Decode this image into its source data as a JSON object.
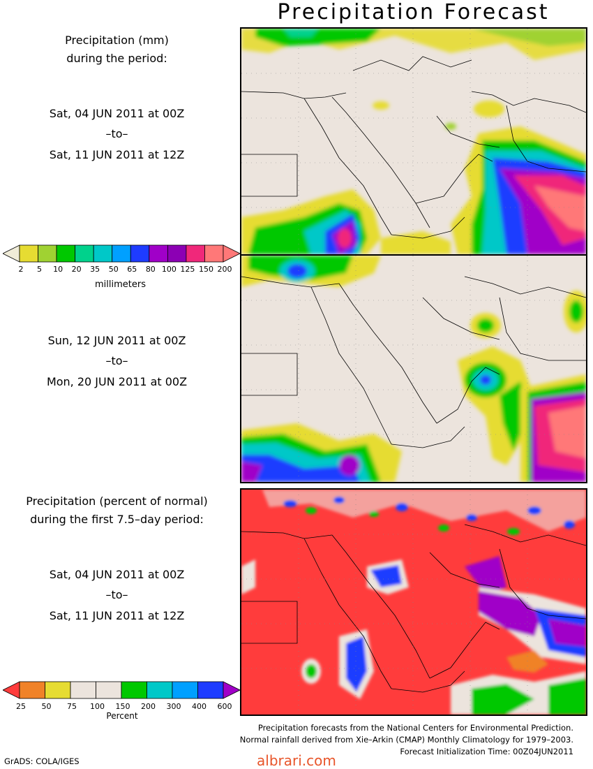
{
  "title": "Precipitation Forecast",
  "panel1": {
    "header_line1": "Precipitation (mm)",
    "header_line2": "during the period:",
    "start": "Sat, 04 JUN 2011 at 00Z",
    "to": "–to–",
    "end": "Sat, 11 JUN 2011 at 12Z"
  },
  "panel2": {
    "start": "Sun, 12 JUN 2011 at 00Z",
    "to": "–to–",
    "end": "Mon, 20 JUN 2011 at 00Z"
  },
  "panel3": {
    "header_line1": "Precipitation (percent of normal)",
    "header_line2": "during the first 7.5–day period:",
    "start": "Sat, 04 JUN 2011 at 00Z",
    "to": "–to–",
    "end": "Sat, 11 JUN 2011 at 12Z"
  },
  "mm_colorbar": {
    "unit": "millimeters",
    "ticks": [
      "2",
      "5",
      "10",
      "20",
      "35",
      "50",
      "65",
      "80",
      "100",
      "125",
      "150",
      "200"
    ],
    "colors": [
      "#f0ecd8",
      "#e6dc32",
      "#a0d232",
      "#00c800",
      "#00d28c",
      "#00c8c8",
      "#00a0ff",
      "#1e3cff",
      "#a000c8",
      "#8c00b4",
      "#f0287a",
      "#ff7878",
      "#ff7878"
    ]
  },
  "pct_colorbar": {
    "unit": "Percent",
    "ticks": [
      "25",
      "50",
      "75",
      "100",
      "150",
      "200",
      "300",
      "400",
      "600"
    ],
    "colors": [
      "#ff3c3c",
      "#f08228",
      "#e6dc32",
      "#ece4dd",
      "#ece4dd",
      "#00c800",
      "#00c8c8",
      "#00a0ff",
      "#1e3cff",
      "#a000c8"
    ]
  },
  "credits": {
    "line1": "Precipitation forecasts from the National Centers for Environmental Prediction.",
    "line2": "Normal rainfall derived from Xie–Arkin (CMAP) Monthly Climatology for 1979–2003.",
    "line3": "Forecast Initialization Time: 00Z04JUN2011"
  },
  "software": "GrADS: COLA/IGES",
  "watermark": "albrari.com"
}
